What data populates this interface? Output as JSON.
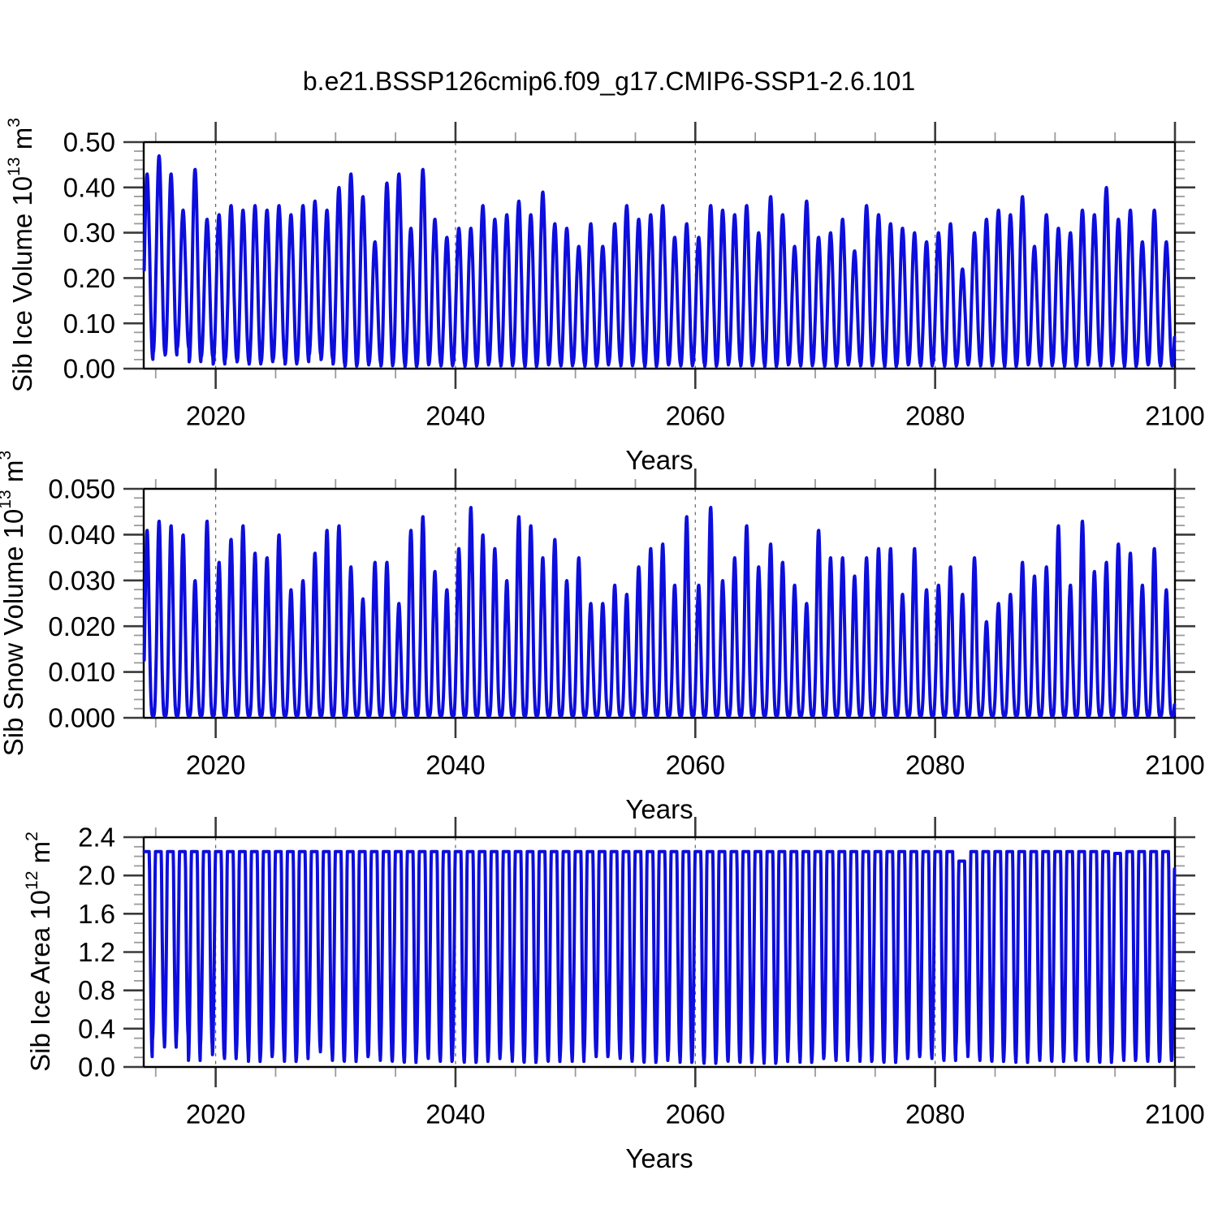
{
  "title": "b.e21.BSSP126cmip6.f09_g17.CMIP6-SSP1-2.6.101",
  "line_color": "#0d0ddd",
  "grid_color": "#666666",
  "chart_data": [
    {
      "type": "line",
      "series_name": "Sib Ice Volume",
      "ylabel_prefix": "Sib Ice Volume 10",
      "ylabel_exp": "13",
      "ylabel_unit": " m",
      "ylabel_unit_exp": "3",
      "xlabel": "Years",
      "xlim": [
        2014,
        2100
      ],
      "ylim": [
        0,
        0.5
      ],
      "x_tick_labels": [
        "2020",
        "2040",
        "2060",
        "2080",
        "2100"
      ],
      "x_ticks": [
        2020,
        2040,
        2060,
        2080,
        2100
      ],
      "x_minor_step": 5,
      "y_tick_labels": [
        "0.00",
        "0.10",
        "0.20",
        "0.30",
        "0.40",
        "0.50"
      ],
      "y_minor_per_major": 4,
      "grid_years": [
        2020,
        2040,
        2060,
        2080
      ],
      "year_start": 2014,
      "n_years": 86,
      "seasonal": {
        "peak": 0.28,
        "sharpness": 1.15,
        "plateau": 0
      },
      "annual_max": [
        0.43,
        0.47,
        0.43,
        0.35,
        0.44,
        0.33,
        0.34,
        0.36,
        0.35,
        0.36,
        0.35,
        0.36,
        0.34,
        0.36,
        0.37,
        0.35,
        0.4,
        0.43,
        0.38,
        0.28,
        0.41,
        0.43,
        0.31,
        0.44,
        0.33,
        0.29,
        0.31,
        0.31,
        0.36,
        0.33,
        0.34,
        0.37,
        0.34,
        0.39,
        0.32,
        0.31,
        0.27,
        0.32,
        0.27,
        0.32,
        0.36,
        0.33,
        0.34,
        0.36,
        0.29,
        0.32,
        0.29,
        0.36,
        0.35,
        0.34,
        0.36,
        0.3,
        0.38,
        0.34,
        0.27,
        0.37,
        0.29,
        0.3,
        0.33,
        0.26,
        0.36,
        0.34,
        0.32,
        0.31,
        0.3,
        0.28,
        0.3,
        0.32,
        0.22,
        0.3,
        0.33,
        0.35,
        0.34,
        0.38,
        0.27,
        0.34,
        0.31,
        0.3,
        0.35,
        0.34,
        0.4,
        0.33,
        0.35,
        0.28,
        0.35,
        0.28
      ],
      "annual_min": [
        0.02,
        0.035,
        0.03,
        0.045,
        0.015,
        0.025,
        0.01,
        0.02,
        0.015,
        0.01,
        0.015,
        0.02,
        0.01,
        0.015,
        0.03,
        0.02,
        0.01,
        0.005,
        0.008,
        0.012,
        0.006,
        0.01,
        0.004,
        0.008,
        0.01,
        0.006,
        0.01,
        0.005,
        0.008,
        0.012,
        0.006,
        0.01,
        0.004,
        0.008,
        0.01,
        0.006,
        0.01,
        0.005,
        0.008,
        0.012,
        0.006,
        0.01,
        0.004,
        0.008,
        0.01,
        0.006,
        0.01,
        0.005,
        0.008,
        0.012,
        0.006,
        0.01,
        0.004,
        0.008,
        0.01,
        0.006,
        0.01,
        0.005,
        0.008,
        0.012,
        0.006,
        0.01,
        0.004,
        0.008,
        0.01,
        0.006,
        0.01,
        0.005,
        0.008,
        0.012,
        0.006,
        0.01,
        0.004,
        0.008,
        0.01,
        0.006,
        0.01,
        0.005,
        0.008,
        0.012,
        0.006,
        0.01,
        0.004,
        0.008,
        0.01,
        0.006
      ]
    },
    {
      "type": "line",
      "series_name": "Sib Snow Volume",
      "ylabel_prefix": "Sib Snow Volume 10",
      "ylabel_exp": "13",
      "ylabel_unit": " m",
      "ylabel_unit_exp": "3",
      "xlabel": "Years",
      "xlim": [
        2014,
        2100
      ],
      "ylim": [
        0,
        0.05
      ],
      "x_tick_labels": [
        "2020",
        "2040",
        "2060",
        "2080",
        "2100"
      ],
      "x_ticks": [
        2020,
        2040,
        2060,
        2080,
        2100
      ],
      "x_minor_step": 5,
      "y_tick_labels": [
        "0.000",
        "0.010",
        "0.020",
        "0.030",
        "0.040",
        "0.050"
      ],
      "y_minor_per_major": 4,
      "grid_years": [
        2020,
        2040,
        2060,
        2080
      ],
      "year_start": 2014,
      "n_years": 86,
      "seasonal": {
        "peak": 0.28,
        "sharpness": 1.9,
        "plateau": 0
      },
      "annual_max": [
        0.041,
        0.043,
        0.042,
        0.04,
        0.03,
        0.043,
        0.034,
        0.039,
        0.042,
        0.036,
        0.035,
        0.04,
        0.028,
        0.03,
        0.036,
        0.041,
        0.042,
        0.033,
        0.026,
        0.034,
        0.034,
        0.025,
        0.041,
        0.044,
        0.032,
        0.028,
        0.037,
        0.046,
        0.04,
        0.037,
        0.03,
        0.044,
        0.042,
        0.035,
        0.039,
        0.03,
        0.035,
        0.025,
        0.025,
        0.029,
        0.027,
        0.033,
        0.037,
        0.038,
        0.029,
        0.044,
        0.029,
        0.046,
        0.03,
        0.035,
        0.042,
        0.033,
        0.038,
        0.034,
        0.029,
        0.025,
        0.041,
        0.035,
        0.035,
        0.031,
        0.035,
        0.037,
        0.037,
        0.027,
        0.037,
        0.028,
        0.029,
        0.033,
        0.027,
        0.035,
        0.021,
        0.025,
        0.027,
        0.034,
        0.031,
        0.033,
        0.042,
        0.029,
        0.043,
        0.032,
        0.034,
        0.038,
        0.036,
        0.029,
        0.037,
        0.028
      ],
      "annual_min": 0.0004
    },
    {
      "type": "line",
      "series_name": "Sib Ice Area",
      "ylabel_prefix": "Sib Ice Area 10",
      "ylabel_exp": "12",
      "ylabel_unit": " m",
      "ylabel_unit_exp": "2",
      "xlabel": "Years",
      "xlim": [
        2014,
        2100
      ],
      "ylim": [
        0,
        2.4
      ],
      "x_tick_labels": [
        "2020",
        "2040",
        "2060",
        "2080",
        "2100"
      ],
      "x_ticks": [
        2020,
        2040,
        2060,
        2080,
        2100
      ],
      "x_minor_step": 5,
      "y_tick_labels": [
        "0.0",
        "0.4",
        "0.8",
        "1.2",
        "1.6",
        "2.0",
        "2.4"
      ],
      "y_minor_per_major": 3,
      "grid_years": [
        2020,
        2040,
        2060,
        2080
      ],
      "year_start": 2014,
      "n_years": 86,
      "seasonal": {
        "peak": 0.22,
        "sharpness": 1.0,
        "plateau": 2.0
      },
      "annual_max": 2.25,
      "max_overrides": {
        "2082": 2.15,
        "2095": 2.23
      },
      "annual_min": [
        0.1,
        0.28,
        0.2,
        0.32,
        0.06,
        0.22,
        0.12,
        0.08,
        0.15,
        0.05,
        0.1,
        0.12,
        0.05,
        0.08,
        0.2,
        0.15,
        0.06,
        0.05,
        0.1,
        0.12,
        0.06,
        0.05,
        0.04,
        0.1,
        0.08,
        0.05,
        0.06,
        0.04,
        0.05,
        0.08,
        0.12,
        0.05,
        0.04,
        0.06,
        0.05,
        0.1,
        0.05,
        0.15,
        0.1,
        0.12,
        0.08,
        0.05,
        0.04,
        0.06,
        0.1,
        0.04,
        0.05,
        0.03,
        0.06,
        0.05,
        0.04,
        0.08,
        0.03,
        0.05,
        0.12,
        0.04,
        0.08,
        0.1,
        0.06,
        0.15,
        0.05,
        0.06,
        0.04,
        0.08,
        0.1,
        0.12,
        0.08,
        0.06,
        0.2,
        0.1,
        0.06,
        0.05,
        0.08,
        0.04,
        0.1,
        0.06,
        0.05,
        0.08,
        0.06,
        0.05,
        0.04,
        0.1,
        0.06,
        0.08,
        0.05,
        0.06
      ]
    }
  ]
}
